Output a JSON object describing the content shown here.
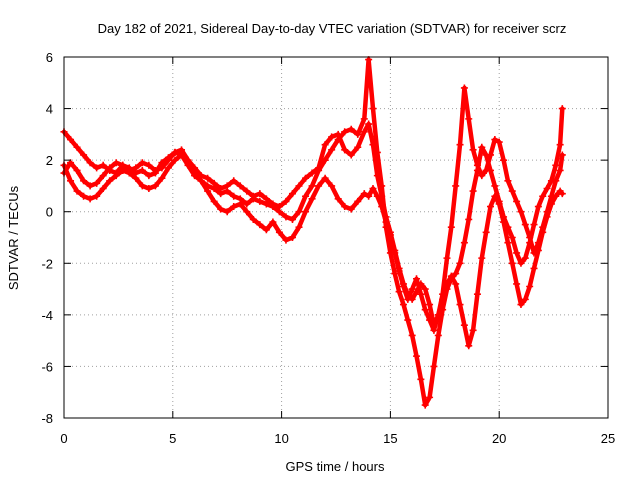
{
  "chart_data": {
    "type": "scatter",
    "title": "Day 182 of 2021, Sidereal Day-to-day VTEC variation (SDTVAR) for receiver scrz",
    "xlabel": "GPS time / hours",
    "ylabel": "SDTVAR / TECUs",
    "xlim": [
      0,
      25
    ],
    "ylim": [
      -8,
      6
    ],
    "xticks": [
      "0",
      "5",
      "10",
      "15",
      "20",
      "25"
    ],
    "yticks": [
      "-8",
      "-6",
      "-4",
      "-2",
      "0",
      "2",
      "4",
      "6"
    ],
    "grid": true,
    "legend": "none",
    "marker": "plus",
    "color": "#ff0000",
    "series": [
      {
        "x": [
          0.0,
          0.3,
          0.6,
          0.9,
          1.2,
          1.5,
          1.8,
          2.1,
          2.4,
          2.7,
          3.0,
          3.3,
          3.6,
          3.9,
          4.2,
          4.5,
          4.8,
          5.1,
          5.4,
          5.7,
          6.0,
          6.3,
          6.6,
          6.9,
          7.2,
          7.5,
          7.8,
          8.1,
          8.4,
          8.7,
          9.0,
          9.3,
          9.6,
          9.9,
          10.2,
          10.5,
          10.8,
          11.1,
          11.4,
          11.7,
          12.0,
          12.3,
          12.6,
          12.9,
          13.2,
          13.5,
          13.8,
          14.0,
          14.2,
          14.4,
          14.6,
          14.8,
          15.0,
          15.2,
          15.4,
          15.6,
          15.8,
          16.0,
          16.2,
          16.4,
          16.6,
          16.8,
          17.0,
          17.2,
          17.4,
          17.6,
          17.8,
          18.0,
          18.2,
          18.4,
          18.6,
          18.8,
          19.0,
          19.2,
          19.4,
          19.6,
          19.8,
          20.0,
          20.2,
          20.4,
          20.6,
          20.8,
          21.0,
          21.2,
          21.4,
          21.6,
          21.8,
          22.0,
          22.2,
          22.4,
          22.6,
          22.8,
          22.9
        ],
        "y": [
          3.1,
          2.8,
          2.5,
          2.2,
          1.9,
          1.7,
          1.8,
          1.6,
          1.5,
          1.8,
          1.7,
          1.5,
          1.6,
          1.4,
          1.5,
          1.9,
          2.1,
          2.3,
          2.2,
          1.8,
          1.4,
          1.2,
          1.0,
          0.9,
          0.7,
          0.8,
          0.6,
          0.5,
          0.3,
          0.5,
          0.4,
          0.3,
          0.2,
          0.0,
          -0.2,
          -0.3,
          0.0,
          0.6,
          1.0,
          1.6,
          2.0,
          2.4,
          2.8,
          3.1,
          3.2,
          3.0,
          3.6,
          5.9,
          4.0,
          2.3,
          1.0,
          -0.6,
          -1.6,
          -2.4,
          -3.1,
          -3.6,
          -4.2,
          -4.8,
          -5.6,
          -6.5,
          -7.5,
          -7.2,
          -6.0,
          -4.8,
          -3.8,
          -3.0,
          -2.6,
          -2.4,
          -2.0,
          -1.2,
          -0.3,
          0.8,
          1.6,
          2.5,
          2.2,
          1.6,
          1.0,
          0.4,
          -0.2,
          -0.6,
          -1.0,
          -1.6,
          -2.0,
          -1.8,
          -1.2,
          -0.5,
          0.2,
          0.6,
          0.9,
          1.2,
          1.8,
          2.6,
          4.0
        ]
      },
      {
        "x": [
          0.0,
          0.3,
          0.6,
          0.9,
          1.2,
          1.5,
          1.8,
          2.1,
          2.4,
          2.7,
          3.0,
          3.3,
          3.6,
          3.9,
          4.2,
          4.5,
          4.8,
          5.1,
          5.4,
          5.7,
          6.0,
          6.3,
          6.6,
          6.9,
          7.2,
          7.5,
          7.8,
          8.1,
          8.4,
          8.7,
          9.0,
          9.3,
          9.6,
          9.9,
          10.2,
          10.5,
          10.8,
          11.1,
          11.4,
          11.7,
          12.0,
          12.3,
          12.6,
          12.9,
          13.2,
          13.5,
          13.8,
          14.0,
          14.2,
          14.4,
          14.6,
          14.8,
          15.0,
          15.2,
          15.4,
          15.6,
          15.8,
          16.0,
          16.2,
          16.4,
          16.6,
          16.8,
          17.0,
          17.2,
          17.4,
          17.6,
          17.8,
          18.0,
          18.2,
          18.4,
          18.6,
          18.8,
          19.0,
          19.2,
          19.4,
          19.6,
          19.8,
          20.0,
          20.2,
          20.4,
          20.6,
          20.8,
          21.0,
          21.2,
          21.4,
          21.6,
          21.8,
          22.0,
          22.2,
          22.4,
          22.6,
          22.8,
          22.9
        ],
        "y": [
          1.8,
          1.2,
          0.8,
          0.6,
          0.5,
          0.6,
          0.9,
          1.2,
          1.4,
          1.6,
          1.5,
          1.3,
          1.0,
          0.9,
          1.0,
          1.3,
          1.7,
          2.0,
          2.2,
          1.9,
          1.5,
          1.2,
          0.8,
          0.4,
          0.1,
          0.0,
          0.2,
          0.3,
          0.0,
          -0.3,
          -0.5,
          -0.7,
          -0.4,
          -0.8,
          -1.1,
          -1.0,
          -0.6,
          0.0,
          0.5,
          1.0,
          1.3,
          1.0,
          0.5,
          0.2,
          0.1,
          0.4,
          0.7,
          0.6,
          0.9,
          0.6,
          0.2,
          -0.4,
          -0.9,
          -1.6,
          -2.3,
          -2.9,
          -3.4,
          -3.0,
          -2.6,
          -3.2,
          -3.8,
          -4.2,
          -4.6,
          -4.0,
          -3.4,
          -2.8,
          -2.5,
          -2.8,
          -3.6,
          -4.4,
          -5.2,
          -4.6,
          -3.2,
          -1.8,
          -0.8,
          0.2,
          0.6,
          0.3,
          -0.4,
          -1.2,
          -2.0,
          -2.8,
          -3.6,
          -3.4,
          -2.9,
          -2.2,
          -1.5,
          -0.8,
          -0.2,
          0.3,
          0.6,
          0.8,
          0.7
        ]
      },
      {
        "x": [
          0.0,
          0.3,
          0.6,
          0.9,
          1.2,
          1.5,
          1.8,
          2.1,
          2.4,
          2.7,
          3.0,
          3.3,
          3.6,
          3.9,
          4.2,
          4.5,
          4.8,
          5.1,
          5.4,
          5.7,
          6.0,
          6.3,
          6.6,
          6.9,
          7.2,
          7.5,
          7.8,
          8.1,
          8.4,
          8.7,
          9.0,
          9.3,
          9.6,
          9.9,
          10.2,
          10.5,
          10.8,
          11.1,
          11.4,
          11.7,
          12.0,
          12.3,
          12.6,
          12.9,
          13.2,
          13.5,
          13.8,
          14.0,
          14.2,
          14.4,
          14.6,
          14.8,
          15.0,
          15.2,
          15.4,
          15.6,
          15.8,
          16.0,
          16.2,
          16.4,
          16.6,
          16.8,
          17.0,
          17.2,
          17.4,
          17.6,
          17.8,
          18.0,
          18.2,
          18.4,
          18.6,
          18.8,
          19.0,
          19.2,
          19.4,
          19.6,
          19.8,
          20.0,
          20.2,
          20.4,
          20.6,
          20.8,
          21.0,
          21.2,
          21.4,
          21.6,
          21.8,
          22.0,
          22.2,
          22.4,
          22.6,
          22.8,
          22.9
        ],
        "y": [
          1.5,
          1.9,
          1.6,
          1.2,
          1.0,
          1.1,
          1.4,
          1.7,
          1.9,
          1.8,
          1.6,
          1.7,
          1.9,
          1.8,
          1.6,
          1.7,
          2.0,
          2.3,
          2.4,
          2.0,
          1.7,
          1.4,
          1.3,
          1.1,
          0.9,
          1.0,
          1.2,
          1.0,
          0.8,
          0.6,
          0.7,
          0.5,
          0.3,
          0.2,
          0.4,
          0.7,
          1.0,
          1.3,
          1.5,
          1.7,
          2.6,
          2.9,
          3.0,
          2.4,
          2.2,
          2.5,
          3.1,
          3.4,
          2.6,
          1.4,
          0.6,
          -0.2,
          -0.8,
          -1.5,
          -2.2,
          -2.8,
          -3.2,
          -3.4,
          -3.1,
          -2.8,
          -3.0,
          -3.6,
          -4.4,
          -4.0,
          -3.2,
          -1.8,
          -0.6,
          1.0,
          2.6,
          4.8,
          3.6,
          2.4,
          1.8,
          1.4,
          1.6,
          2.2,
          2.8,
          2.7,
          2.0,
          1.2,
          0.8,
          0.4,
          0.0,
          -0.5,
          -1.0,
          -1.6,
          -1.2,
          -0.6,
          0.0,
          0.6,
          1.2,
          1.6,
          2.2
        ]
      }
    ]
  }
}
